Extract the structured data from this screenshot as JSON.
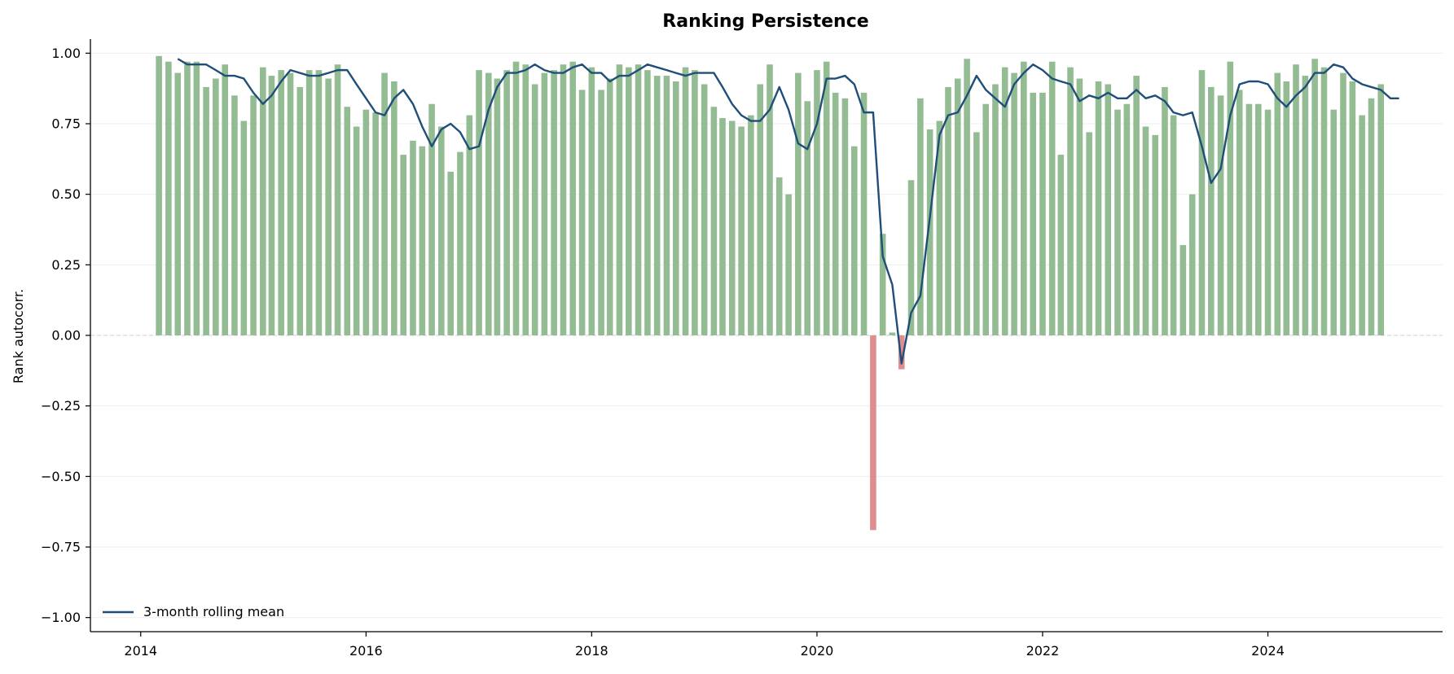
{
  "chart_data": {
    "type": "bar",
    "title": "Ranking Persistence",
    "xlabel": "",
    "ylabel": "Rank autocorr.",
    "xlim": [
      "2013-07-22",
      "2025-07-20"
    ],
    "ylim": [
      -1.05,
      1.05
    ],
    "xticks": [
      {
        "date": "2014-01-01",
        "label": "2014"
      },
      {
        "date": "2016-01-01",
        "label": "2016"
      },
      {
        "date": "2018-01-01",
        "label": "2018"
      },
      {
        "date": "2020-01-01",
        "label": "2020"
      },
      {
        "date": "2022-01-01",
        "label": "2022"
      },
      {
        "date": "2024-01-01",
        "label": "2024"
      }
    ],
    "yticks": [
      {
        "value": 1.0,
        "label": "1.00"
      },
      {
        "value": 0.75,
        "label": "0.75"
      },
      {
        "value": 0.5,
        "label": "0.50"
      },
      {
        "value": 0.25,
        "label": "0.25"
      },
      {
        "value": 0.0,
        "label": "0.00"
      },
      {
        "value": -0.25,
        "label": "−0.25"
      },
      {
        "value": -0.5,
        "label": "−0.50"
      },
      {
        "value": -0.75,
        "label": "−0.75"
      },
      {
        "value": -1.0,
        "label": "−1.00"
      }
    ],
    "grid": "horizontal",
    "start_month": "2014-03",
    "values": [
      0.99,
      0.97,
      0.93,
      0.97,
      0.97,
      0.88,
      0.91,
      0.96,
      0.85,
      0.76,
      0.85,
      0.95,
      0.92,
      0.94,
      0.93,
      0.88,
      0.94,
      0.94,
      0.91,
      0.96,
      0.81,
      0.74,
      0.8,
      0.79,
      0.93,
      0.9,
      0.64,
      0.69,
      0.67,
      0.82,
      0.74,
      0.58,
      0.65,
      0.78,
      0.94,
      0.93,
      0.91,
      0.94,
      0.97,
      0.96,
      0.89,
      0.93,
      0.94,
      0.96,
      0.97,
      0.87,
      0.95,
      0.87,
      0.91,
      0.96,
      0.95,
      0.96,
      0.94,
      0.92,
      0.92,
      0.9,
      0.95,
      0.94,
      0.89,
      0.81,
      0.77,
      0.76,
      0.74,
      0.78,
      0.89,
      0.96,
      0.56,
      0.5,
      0.93,
      0.83,
      0.94,
      0.97,
      0.86,
      0.84,
      0.67,
      0.86,
      -0.69,
      0.36,
      0.01,
      -0.12,
      0.55,
      0.84,
      0.73,
      0.76,
      0.88,
      0.91,
      0.98,
      0.72,
      0.82,
      0.89,
      0.95,
      0.93,
      0.97,
      0.86,
      0.86,
      0.97,
      0.64,
      0.95,
      0.91,
      0.72,
      0.9,
      0.89,
      0.8,
      0.82,
      0.92,
      0.74,
      0.71,
      0.88,
      0.78,
      0.32,
      0.5,
      0.94,
      0.88,
      0.85,
      0.97,
      0.87,
      0.82,
      0.82,
      0.8,
      0.93,
      0.9,
      0.96,
      0.92,
      0.98,
      0.95,
      0.8,
      0.93,
      0.9,
      0.78,
      0.84,
      0.89
    ],
    "series": [
      {
        "name": "3-month rolling mean",
        "type": "line",
        "start_month": "2014-05",
        "values": [
          0.98,
          0.96,
          0.96,
          0.96,
          0.94,
          0.92,
          0.92,
          0.91,
          0.86,
          0.82,
          0.85,
          0.9,
          0.94,
          0.93,
          0.92,
          0.92,
          0.93,
          0.94,
          0.94,
          0.89,
          0.84,
          0.79,
          0.78,
          0.84,
          0.87,
          0.82,
          0.74,
          0.67,
          0.73,
          0.75,
          0.72,
          0.66,
          0.67,
          0.8,
          0.88,
          0.93,
          0.93,
          0.94,
          0.96,
          0.94,
          0.93,
          0.93,
          0.95,
          0.96,
          0.93,
          0.93,
          0.9,
          0.92,
          0.92,
          0.94,
          0.96,
          0.95,
          0.94,
          0.93,
          0.92,
          0.93,
          0.93,
          0.93,
          0.88,
          0.82,
          0.78,
          0.76,
          0.76,
          0.8,
          0.88,
          0.8,
          0.68,
          0.66,
          0.75,
          0.91,
          0.91,
          0.92,
          0.89,
          0.79,
          0.79,
          0.28,
          0.18,
          -0.1,
          0.08,
          0.14,
          0.42,
          0.71,
          0.78,
          0.79,
          0.85,
          0.92,
          0.87,
          0.84,
          0.81,
          0.89,
          0.93,
          0.96,
          0.94,
          0.91,
          0.9,
          0.89,
          0.83,
          0.85,
          0.84,
          0.86,
          0.84,
          0.84,
          0.87,
          0.84,
          0.85,
          0.83,
          0.79,
          0.78,
          0.79,
          0.67,
          0.54,
          0.59,
          0.78,
          0.89,
          0.9,
          0.9,
          0.89,
          0.84,
          0.81,
          0.85,
          0.88,
          0.93,
          0.93,
          0.96,
          0.95,
          0.91,
          0.89,
          0.88,
          0.87,
          0.84,
          0.84
        ]
      }
    ],
    "legend": {
      "entries": [
        "3-month rolling mean"
      ],
      "position": "lower-left"
    },
    "colors": {
      "positive_bar": "#93bc93",
      "negative_bar": "#de8e8e",
      "line": "#1f4e79",
      "zero_line": "#cccccc",
      "grid": "#eeeeee",
      "axis": "#000000"
    }
  }
}
